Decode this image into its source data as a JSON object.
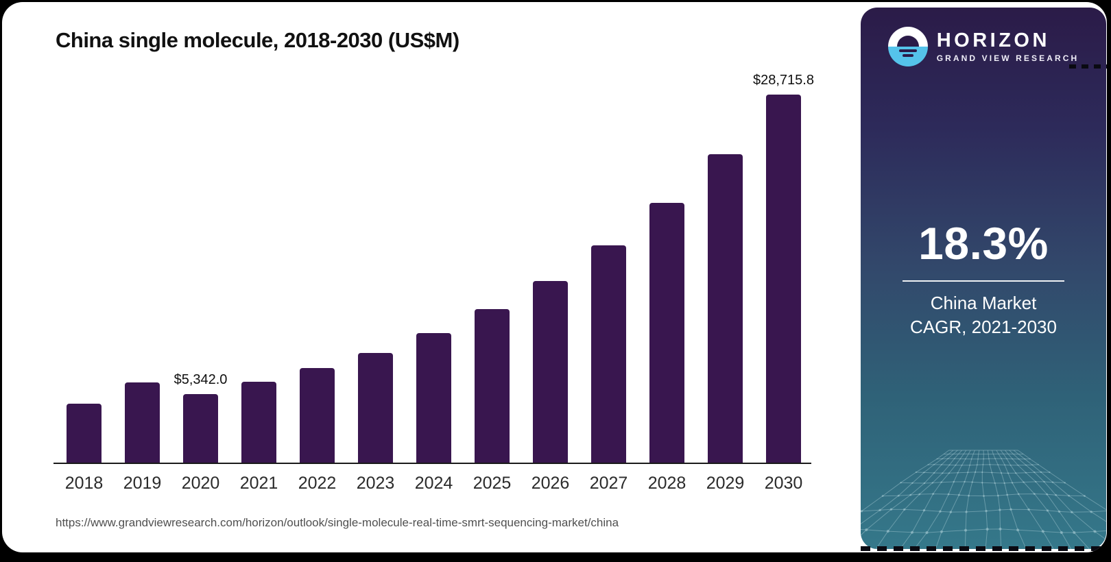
{
  "header": {
    "title": "China single molecule, 2018-2030 (US$M)"
  },
  "source": {
    "url": "https://www.grandviewresearch.com/horizon/outlook/single-molecule-real-time-smrt-sequencing-market/china"
  },
  "chart_data": {
    "type": "bar",
    "title": "China single molecule, 2018-2030 (US$M)",
    "categories": [
      "2018",
      "2019",
      "2020",
      "2021",
      "2022",
      "2023",
      "2024",
      "2025",
      "2026",
      "2027",
      "2028",
      "2029",
      "2030"
    ],
    "values": [
      4600,
      6250,
      5342.0,
      6310,
      7380,
      8560,
      10100,
      12000,
      14200,
      16950,
      20270,
      24060,
      28715.8
    ],
    "data_labels": [
      {
        "category": "2020",
        "label": "$5,342.0"
      },
      {
        "category": "2030",
        "label": "$28,715.8"
      }
    ],
    "xlabel": "",
    "ylabel": "",
    "ylim": [
      0,
      30000
    ],
    "grid": "off",
    "legend": "none",
    "bar_color": "#39164F",
    "axis_color": "#1A1A1A"
  },
  "sidebar": {
    "logo": {
      "brand": "HORIZON",
      "sub_brand": "GRAND VIEW RESEARCH"
    },
    "stat": {
      "value": "18.3%",
      "label_line1": "China Market",
      "label_line2": "CAGR, 2021-2030"
    },
    "colors": {
      "gradient_top": "#2B1B48",
      "gradient_bottom": "#35788A",
      "logo_blue": "#55C3EA",
      "mesh_line": "#A9CDD5"
    }
  }
}
